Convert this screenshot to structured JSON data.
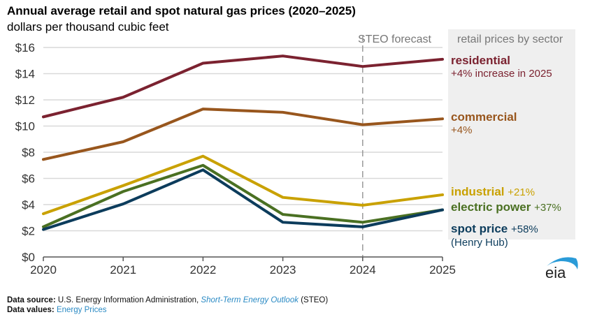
{
  "chart_data": {
    "type": "line",
    "title": "Annual average retail and spot natural gas prices (2020–2025)",
    "subtitle": "dollars per thousand cubic feet",
    "xlabel": "",
    "ylabel": "dollars per thousand cubic feet",
    "x": [
      2020,
      2021,
      2022,
      2023,
      2024,
      2025
    ],
    "x_tick_labels": [
      "2020",
      "2021",
      "2022",
      "2023",
      "2024",
      "2025"
    ],
    "ylim": [
      0,
      16
    ],
    "y_ticks": [
      0,
      2,
      4,
      6,
      8,
      10,
      12,
      14,
      16
    ],
    "y_tick_labels": [
      "$0",
      "$2",
      "$4",
      "$6",
      "$8",
      "$10",
      "$12",
      "$14",
      "$16"
    ],
    "grid": true,
    "forecast_start": 2024,
    "forecast_label": "STEO forecast",
    "legend_placement": "right, inline labels",
    "legend_panel_title": "retail prices by sector",
    "series": [
      {
        "key": "residential",
        "name": "residential",
        "change": "+4% increase in 2025",
        "color": "#7b2230",
        "values": [
          10.7,
          12.2,
          14.8,
          15.35,
          14.55,
          15.1
        ]
      },
      {
        "key": "commercial",
        "name": "commercial",
        "change": "+4%",
        "color": "#98561d",
        "values": [
          7.45,
          8.8,
          11.3,
          11.05,
          10.1,
          10.55
        ]
      },
      {
        "key": "industrial",
        "name": "industrial",
        "change": "+21%",
        "color": "#c9a100",
        "values": [
          3.3,
          5.45,
          7.7,
          4.55,
          3.95,
          4.75
        ]
      },
      {
        "key": "electric",
        "name": "electric power",
        "change": "+37%",
        "color": "#4a7022",
        "values": [
          2.3,
          5.0,
          7.0,
          3.25,
          2.65,
          3.6
        ]
      },
      {
        "key": "spot",
        "name": "spot price",
        "change": "+58%",
        "note": "(Henry Hub)",
        "color": "#0c3c5c",
        "values": [
          2.1,
          4.05,
          6.65,
          2.65,
          2.3,
          3.6
        ]
      }
    ]
  },
  "footer": {
    "source_label": "Data source:",
    "source_text": "U.S. Energy Information Administration,",
    "source_link": "Short-Term Energy Outlook",
    "source_suffix": "(STEO)",
    "values_label": "Data values:",
    "values_link": "Energy Prices"
  },
  "logo": {
    "text": "eia",
    "arc_color": "#2a9bd8"
  }
}
